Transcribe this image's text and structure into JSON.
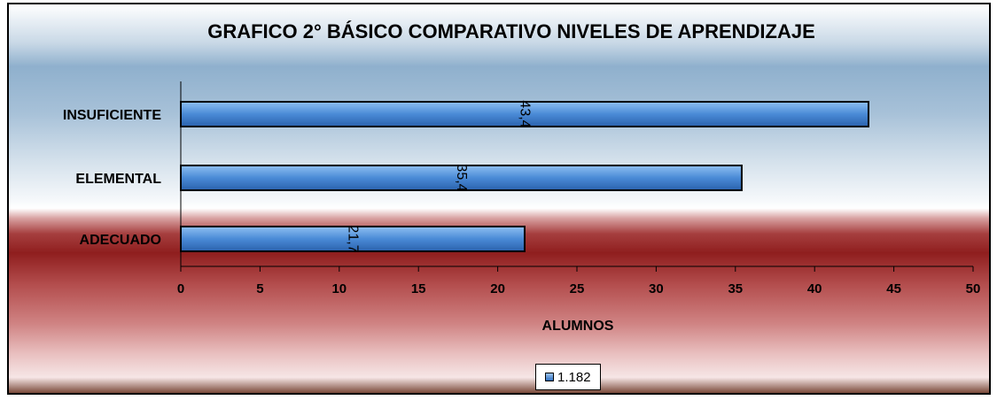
{
  "chart_data": {
    "type": "bar",
    "orientation": "horizontal",
    "title": "GRAFICO 2° BÁSICO COMPARATIVO NIVELES DE APRENDIZAJE",
    "categories": [
      "INSUFICIENTE",
      "ELEMENTAL",
      "ADECUADO"
    ],
    "series": [
      {
        "name": "1.182",
        "values": [
          43.4,
          35.4,
          21.7
        ],
        "data_labels": [
          "43,4",
          "35,4",
          "21,7"
        ],
        "color": "#4a8ad6"
      }
    ],
    "xlabel": "ALUMNOS",
    "ylabel": "",
    "xlim": [
      0,
      50
    ],
    "ticks": [
      0,
      5,
      10,
      15,
      20,
      25,
      30,
      35,
      40,
      45,
      50
    ],
    "grid": false,
    "legend_position": "bottom",
    "data_label_orientation": "rotated"
  }
}
